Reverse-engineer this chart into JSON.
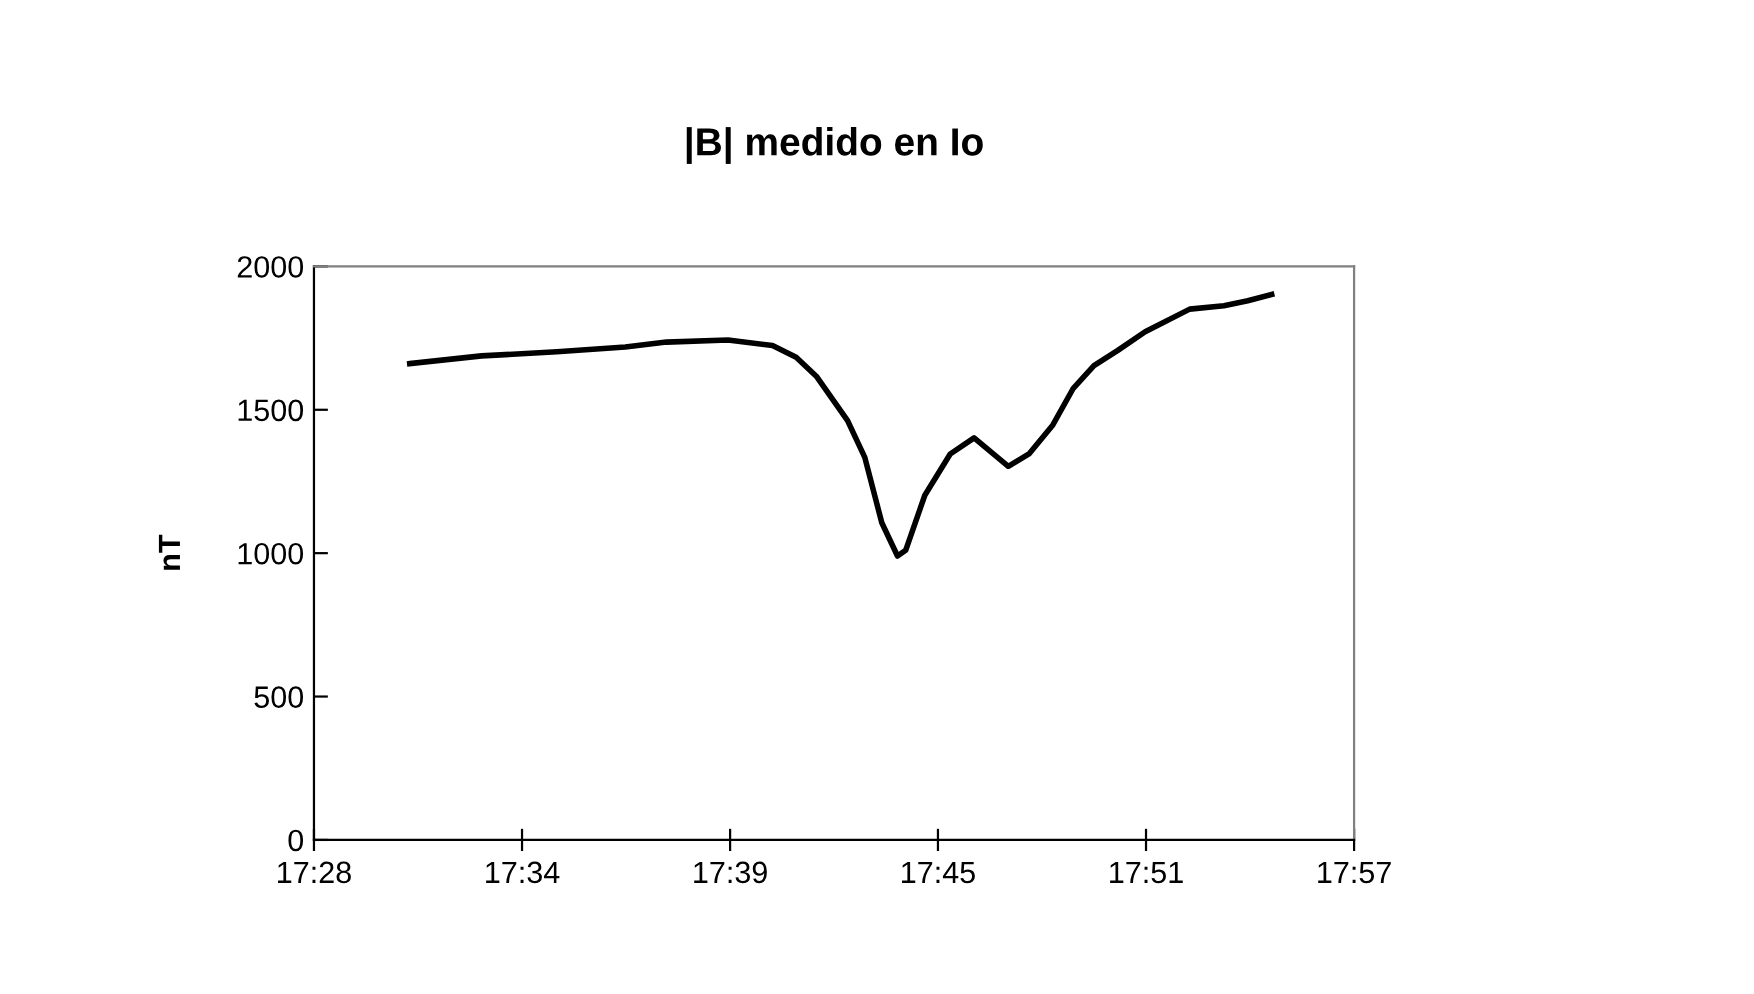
{
  "chart_data": {
    "type": "line",
    "title": "|B| medido en Io",
    "ylabel": "nT",
    "x": [
      17.5078,
      17.5412,
      17.5762,
      17.608,
      17.6271,
      17.6557,
      17.6764,
      17.6874,
      17.697,
      17.7113,
      17.7193,
      17.7272,
      17.7345,
      17.7383,
      17.7472,
      17.759,
      17.7701,
      17.786,
      17.7956,
      17.8067,
      17.8162,
      17.8258,
      17.8369,
      17.8496,
      17.8703,
      17.8862,
      17.8973,
      17.9084
    ],
    "series": [
      {
        "color": "#000000",
        "values": [
          1661,
          1688,
          1702,
          1719,
          1736,
          1743,
          1724,
          1683,
          1615,
          1462,
          1334,
          1106,
          990,
          1010,
          1202,
          1346,
          1402,
          1303,
          1346,
          1447,
          1575,
          1654,
          1707,
          1772,
          1851,
          1863,
          1880,
          1902
        ]
      }
    ],
    "xlim": [
      17.4633,
      17.9467
    ],
    "xticks": [
      {
        "value": 17.4633,
        "label": "17:28"
      },
      {
        "value": 17.56,
        "label": "17:34"
      },
      {
        "value": 17.6567,
        "label": "17:39"
      },
      {
        "value": 17.7533,
        "label": "17:45"
      },
      {
        "value": 17.85,
        "label": "17:51"
      },
      {
        "value": 17.9467,
        "label": "17:57"
      }
    ],
    "ylim": [
      0,
      2000
    ],
    "yticks": [
      0,
      500,
      1000,
      1500,
      2000
    ],
    "grid": false,
    "legend": false,
    "marker": "none",
    "line_style": "solid"
  }
}
